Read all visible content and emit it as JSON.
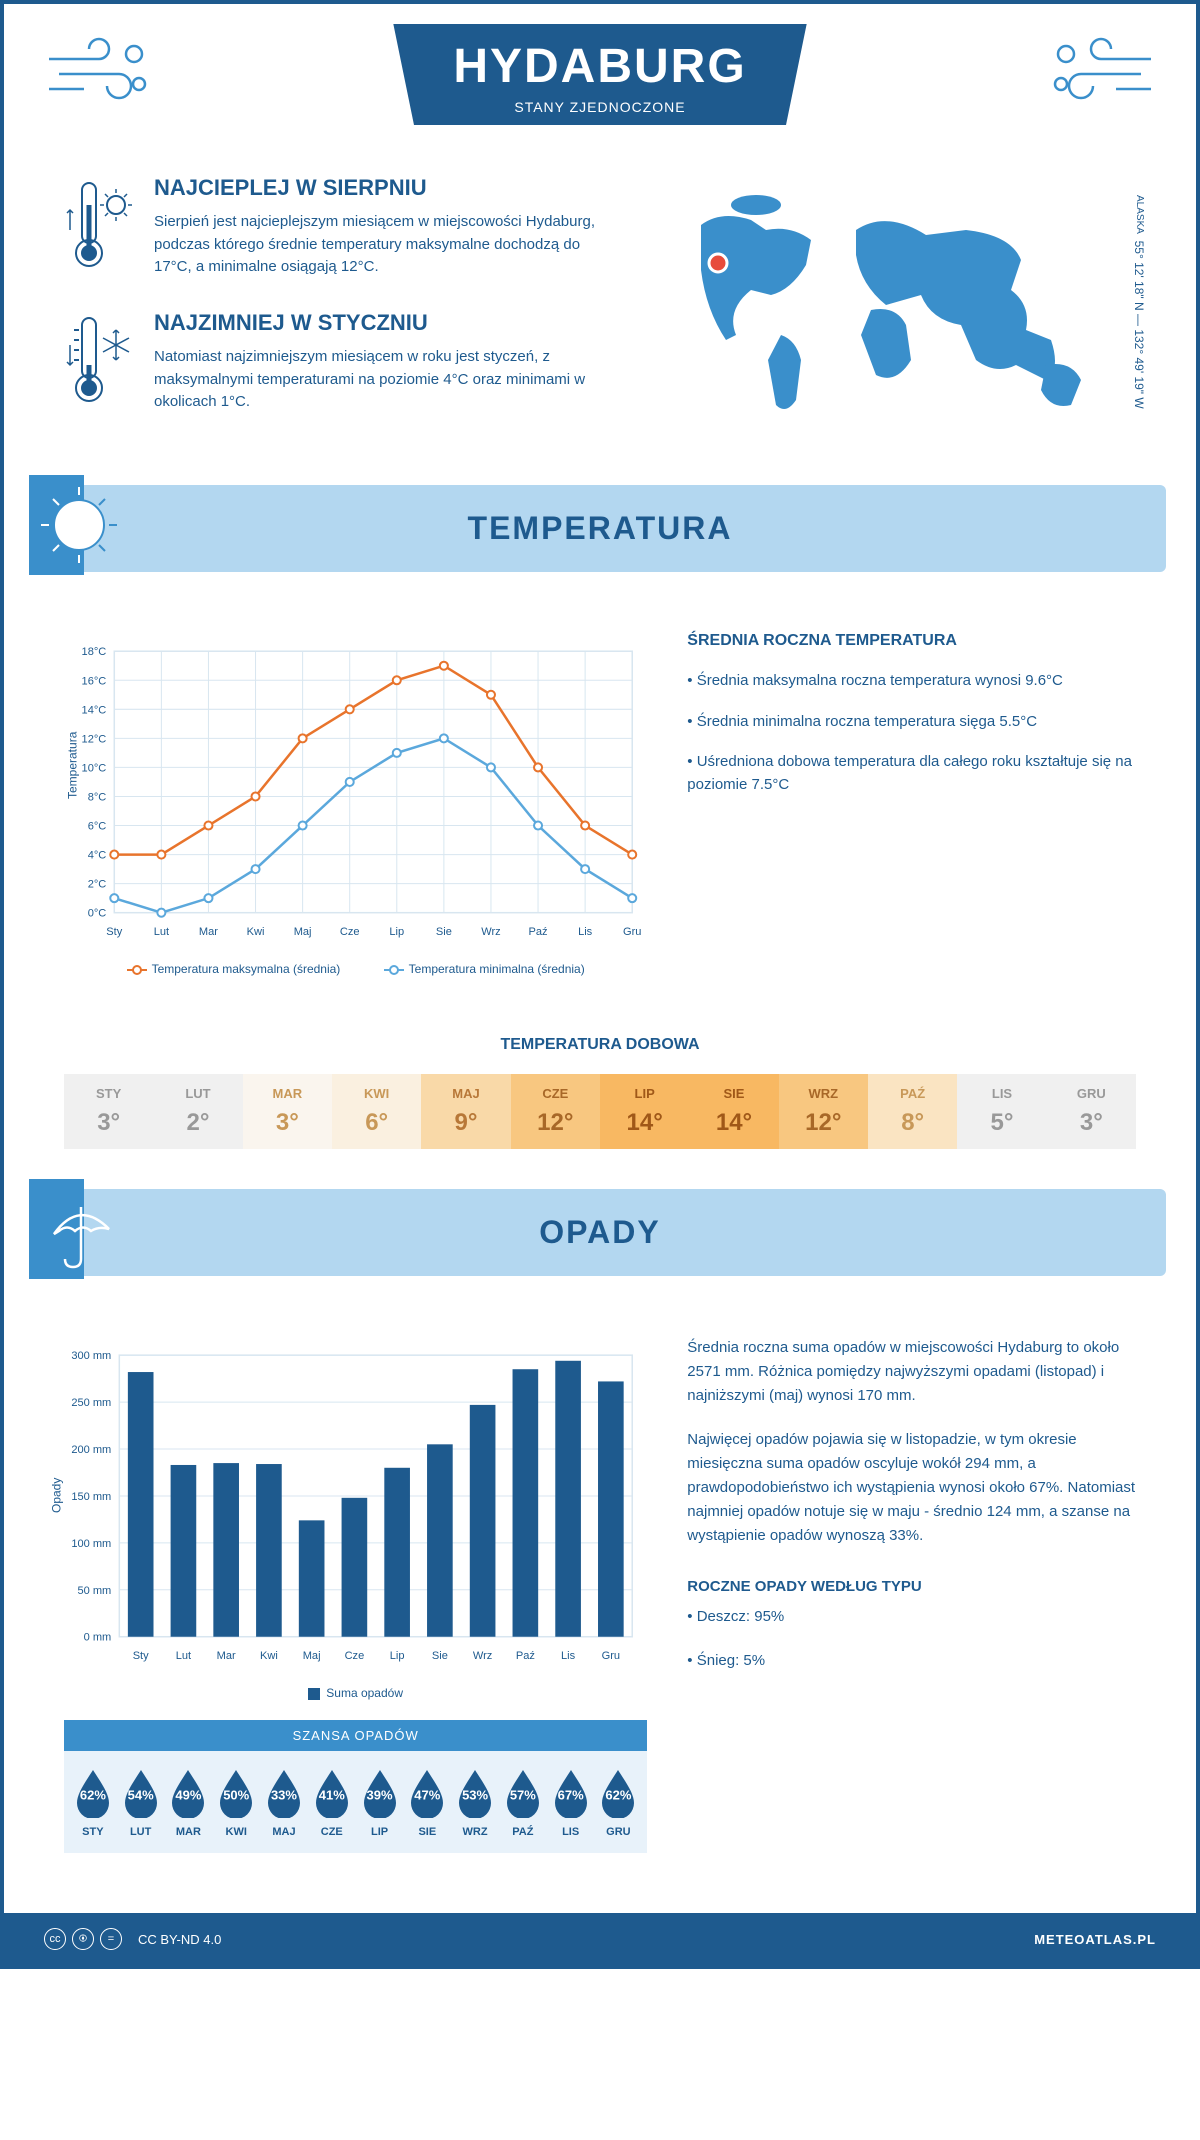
{
  "header": {
    "city": "HYDABURG",
    "country": "STANY ZJEDNOCZONE"
  },
  "intro": {
    "warmest": {
      "title": "NAJCIEPLEJ W SIERPNIU",
      "text": "Sierpień jest najcieplejszym miesiącem w miejscowości Hydaburg, podczas którego średnie temperatury maksymalne dochodzą do 17°C, a minimalne osiągają 12°C."
    },
    "coldest": {
      "title": "NAJZIMNIEJ W STYCZNIU",
      "text": "Natomiast najzimniejszym miesiącem w roku jest styczeń, z maksymalnymi temperaturami na poziomie 4°C oraz minimami w okolicach 1°C."
    },
    "coords": "55° 12' 18\" N — 132° 49' 19\" W",
    "region": "ALASKA",
    "marker_color": "#e74c3c",
    "map_color": "#3a8fcb"
  },
  "colors": {
    "primary": "#1e5a8e",
    "light_blue": "#b3d7f0",
    "accent_blue": "#3a8fcb",
    "orange": "#e8742c",
    "line_blue": "#5ba8dc",
    "grid": "#d8e6f0",
    "bar": "#1e5a8e"
  },
  "temperature": {
    "section_title": "TEMPERATURA",
    "ylabel": "Temperatura",
    "months": [
      "Sty",
      "Lut",
      "Mar",
      "Kwi",
      "Maj",
      "Cze",
      "Lip",
      "Sie",
      "Wrz",
      "Paź",
      "Lis",
      "Gru"
    ],
    "max_series": [
      4,
      4,
      6,
      8,
      12,
      14,
      16,
      17,
      15,
      10,
      6,
      4
    ],
    "min_series": [
      1,
      0,
      1,
      3,
      6,
      9,
      11,
      12,
      10,
      6,
      3,
      1
    ],
    "ylim": [
      0,
      18
    ],
    "ytick_step": 2,
    "y_suffix": "°C",
    "legend_max": "Temperatura maksymalna (średnia)",
    "legend_min": "Temperatura minimalna (średnia)",
    "stats_title": "ŚREDNIA ROCZNA TEMPERATURA",
    "stat1": "• Średnia maksymalna roczna temperatura wynosi 9.6°C",
    "stat2": "• Średnia minimalna roczna temperatura sięga 5.5°C",
    "stat3": "• Uśredniona dobowa temperatura dla całego roku kształtuje się na poziomie 7.5°C"
  },
  "daily": {
    "title": "TEMPERATURA DOBOWA",
    "months": [
      "STY",
      "LUT",
      "MAR",
      "KWI",
      "MAJ",
      "CZE",
      "LIP",
      "SIE",
      "WRZ",
      "PAŹ",
      "LIS",
      "GRU"
    ],
    "values": [
      "3°",
      "2°",
      "3°",
      "6°",
      "9°",
      "12°",
      "14°",
      "14°",
      "12°",
      "8°",
      "5°",
      "3°"
    ],
    "bg_colors": [
      "#f0f0f0",
      "#f0f0f0",
      "#faf5ee",
      "#faf0e0",
      "#f9d9a8",
      "#f8c780",
      "#f8b862",
      "#f8b862",
      "#f8c780",
      "#fae4c2",
      "#f0f0f0",
      "#f0f0f0"
    ],
    "text_colors": [
      "#999",
      "#999",
      "#c89858",
      "#c89858",
      "#b87838",
      "#a86828",
      "#a05818",
      "#a05818",
      "#a86828",
      "#c89858",
      "#999",
      "#999"
    ]
  },
  "precipitation": {
    "section_title": "OPADY",
    "ylabel": "Opady",
    "months": [
      "Sty",
      "Lut",
      "Mar",
      "Kwi",
      "Maj",
      "Cze",
      "Lip",
      "Sie",
      "Wrz",
      "Paź",
      "Lis",
      "Gru"
    ],
    "values": [
      282,
      183,
      185,
      184,
      124,
      148,
      180,
      205,
      247,
      285,
      294,
      272
    ],
    "ylim": [
      0,
      300
    ],
    "ytick_step": 50,
    "y_suffix": " mm",
    "legend": "Suma opadów",
    "para1": "Średnia roczna suma opadów w miejscowości Hydaburg to około 2571 mm. Różnica pomiędzy najwyższymi opadami (listopad) i najniższymi (maj) wynosi 170 mm.",
    "para2": "Najwięcej opadów pojawia się w listopadzie, w tym okresie miesięczna suma opadów oscyluje wokół 294 mm, a prawdopodobieństwo ich wystąpienia wynosi około 67%. Natomiast najmniej opadów notuje się w maju - średnio 124 mm, a szanse na wystąpienie opadów wynoszą 33%.",
    "chance_title": "SZANSA OPADÓW",
    "chance_months": [
      "STY",
      "LUT",
      "MAR",
      "KWI",
      "MAJ",
      "CZE",
      "LIP",
      "SIE",
      "WRZ",
      "PAŹ",
      "LIS",
      "GRU"
    ],
    "chance_values": [
      "62%",
      "54%",
      "49%",
      "50%",
      "33%",
      "41%",
      "39%",
      "47%",
      "53%",
      "57%",
      "67%",
      "62%"
    ],
    "bytype_title": "ROCZNE OPADY WEDŁUG TYPU",
    "bytype_rain": "• Deszcz: 95%",
    "bytype_snow": "• Śnieg: 5%"
  },
  "footer": {
    "license": "CC BY-ND 4.0",
    "site": "METEOATLAS.PL"
  }
}
